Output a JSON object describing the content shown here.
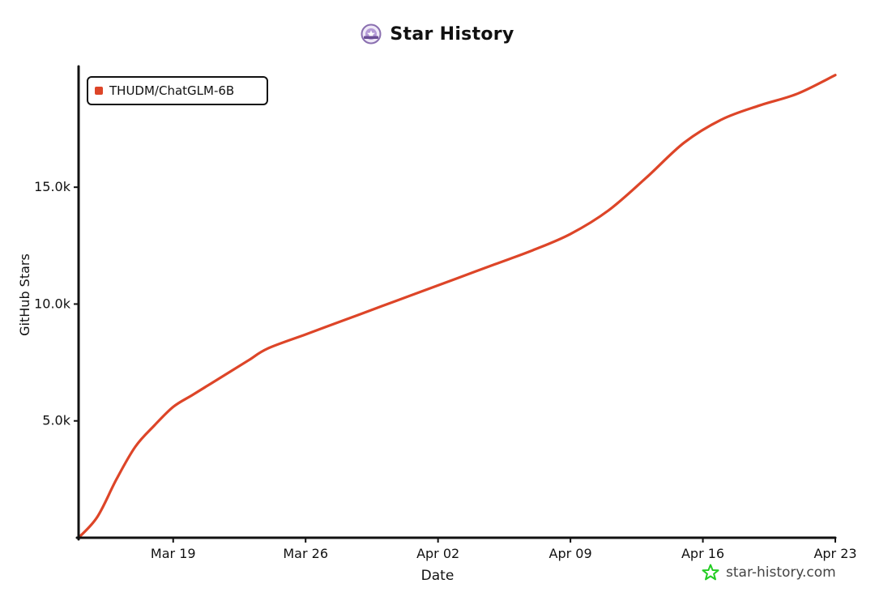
{
  "colors": {
    "series": "#dd4528",
    "axis": "#111111",
    "logo_ring": "#8a6fb0",
    "watermark_star": "#22cc22"
  },
  "icons": {
    "title_logo": "star-history-logo-icon",
    "watermark": "star-outline-icon"
  },
  "watermark": {
    "text": "star-history.com"
  },
  "chart_data": {
    "type": "line",
    "title": "Star History",
    "xlabel": "Date",
    "ylabel": "GitHub Stars",
    "legend_position": "top-left",
    "grid": false,
    "x_range": [
      "2023-03-14",
      "2023-04-23"
    ],
    "ylim": [
      0,
      20100
    ],
    "x_ticks": [
      "2023-03-19",
      "2023-03-26",
      "2023-04-02",
      "2023-04-09",
      "2023-04-16",
      "2023-04-23"
    ],
    "x_tick_labels": [
      "Mar 19",
      "Mar 26",
      "Apr 02",
      "Apr 09",
      "Apr 16",
      "Apr 23"
    ],
    "y_ticks": [
      5000,
      10000,
      15000
    ],
    "y_tick_labels": [
      "5.0k",
      "10.0k",
      "15.0k"
    ],
    "series": [
      {
        "name": "THUDM/ChatGLM-6B",
        "x": [
          "2023-03-14",
          "2023-03-15",
          "2023-03-16",
          "2023-03-17",
          "2023-03-18",
          "2023-03-19",
          "2023-03-20",
          "2023-03-21",
          "2023-03-22",
          "2023-03-23",
          "2023-03-24",
          "2023-03-26",
          "2023-03-28",
          "2023-03-30",
          "2023-04-01",
          "2023-04-03",
          "2023-04-05",
          "2023-04-07",
          "2023-04-09",
          "2023-04-11",
          "2023-04-13",
          "2023-04-15",
          "2023-04-17",
          "2023-04-19",
          "2023-04-21",
          "2023-04-23"
        ],
        "y": [
          0,
          900,
          2500,
          3900,
          4800,
          5600,
          6100,
          6600,
          7100,
          7600,
          8100,
          8700,
          9300,
          9900,
          10500,
          11100,
          11700,
          12300,
          13000,
          14000,
          15400,
          16900,
          17900,
          18500,
          19000,
          19800
        ]
      }
    ]
  }
}
